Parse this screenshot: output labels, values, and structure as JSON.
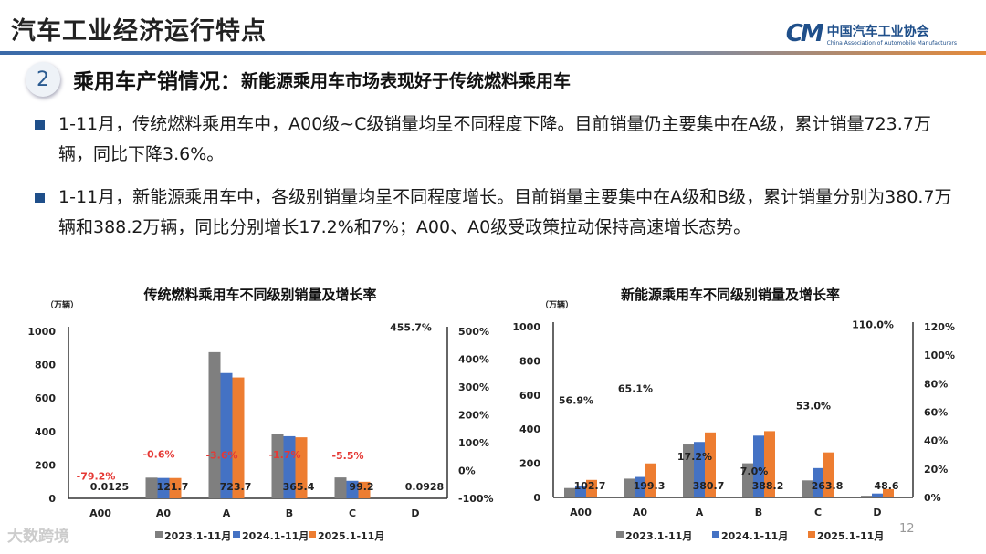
{
  "header": {
    "title": "汽车工业经济运行特点",
    "logo_mark": "CM",
    "logo_cn": "中国汽车工业协会",
    "logo_en": "China Association of Automobile Manufacturers"
  },
  "section": {
    "number": "2",
    "heading": "乘用车产销情况：",
    "subheading": "新能源乘用车市场表现好于传统燃料乘用车"
  },
  "bullets": [
    "1-11月，传统燃料乘用车中，A00级~C级销量均呈不同程度下降。目前销量仍主要集中在A级，累计销量723.7万辆，同比下降3.6%。",
    "1-11月，新能源乘用车中，各级别销量均呈不同程度增长。目前销量主要集中在A级和B级，累计销量分别为380.7万辆和388.2万辆，同比分别增长17.2%和7%；A00、A0级受政策拉动保持高速增长态势。"
  ],
  "colors": {
    "s2023": "#7f7f7f",
    "s2024": "#4472c4",
    "s2025": "#ed7d31",
    "negative": "#e53935",
    "accent": "#1f4f8a"
  },
  "chart_data": [
    {
      "type": "bar",
      "title": "传统燃料乘用车不同级别销量及增长率",
      "unit": "（万辆）",
      "categories": [
        "A00",
        "A0",
        "A",
        "B",
        "C",
        "D"
      ],
      "ylim": [
        0,
        1000
      ],
      "yticks": [
        "0",
        "200",
        "400",
        "600",
        "800",
        "1000"
      ],
      "y2lim": [
        -100,
        500
      ],
      "y2ticks": [
        "-100%",
        "0%",
        "100%",
        "200%",
        "300%",
        "400%",
        "500%"
      ],
      "series": [
        {
          "name": "2023.1-11月",
          "values": [
            0.06,
            124,
            875,
            383,
            125,
            0.02
          ]
        },
        {
          "name": "2024.1-11月",
          "values": [
            0.06,
            122,
            750,
            372,
            105,
            0.02
          ]
        },
        {
          "name": "2025.1-11月",
          "values": [
            0.0125,
            121.7,
            723.7,
            365.4,
            99.2,
            0.0928
          ]
        }
      ],
      "value_labels": [
        "0.0125",
        "121.7",
        "723.7",
        "365.4",
        "99.2",
        "0.0928"
      ],
      "growth": [
        -79.2,
        -0.6,
        -3.6,
        -1.7,
        -5.5,
        455.7
      ],
      "growth_labels": [
        "-79.2%",
        "-0.6%",
        "-3.6%",
        "-1.7%",
        "-5.5%",
        "455.7%"
      ],
      "legend": "bottom",
      "grid": false
    },
    {
      "type": "bar",
      "title": "新能源乘用车不同级别销量及增长率",
      "unit": "（万辆）",
      "categories": [
        "A00",
        "A0",
        "A",
        "B",
        "C",
        "D"
      ],
      "ylim": [
        0,
        1000
      ],
      "yticks": [
        "0",
        "200",
        "400",
        "600",
        "800",
        "1000"
      ],
      "y2lim": [
        0,
        120
      ],
      "y2ticks": [
        "0%",
        "20%",
        "40%",
        "60%",
        "80%",
        "100%",
        "120%"
      ],
      "series": [
        {
          "name": "2023.1-11月",
          "values": [
            55,
            110,
            310,
            200,
            100,
            10
          ]
        },
        {
          "name": "2024.1-11月",
          "values": [
            65,
            120,
            325,
            362,
            172,
            23
          ]
        },
        {
          "name": "2025.1-11月",
          "values": [
            102.7,
            199.3,
            380.7,
            388.2,
            263.8,
            48.6
          ]
        }
      ],
      "value_labels": [
        "102.7",
        "199.3",
        "380.7",
        "388.2",
        "263.8",
        "48.6"
      ],
      "growth": [
        56.9,
        65.1,
        17.2,
        7.0,
        53.0,
        110.0
      ],
      "growth_labels": [
        "56.9%",
        "65.1%",
        "17.2%",
        "7.0%",
        "53.0%",
        "110.0%"
      ],
      "legend": "bottom",
      "grid": false
    }
  ],
  "footer": {
    "watermark": "大数跨境",
    "page": "12"
  }
}
